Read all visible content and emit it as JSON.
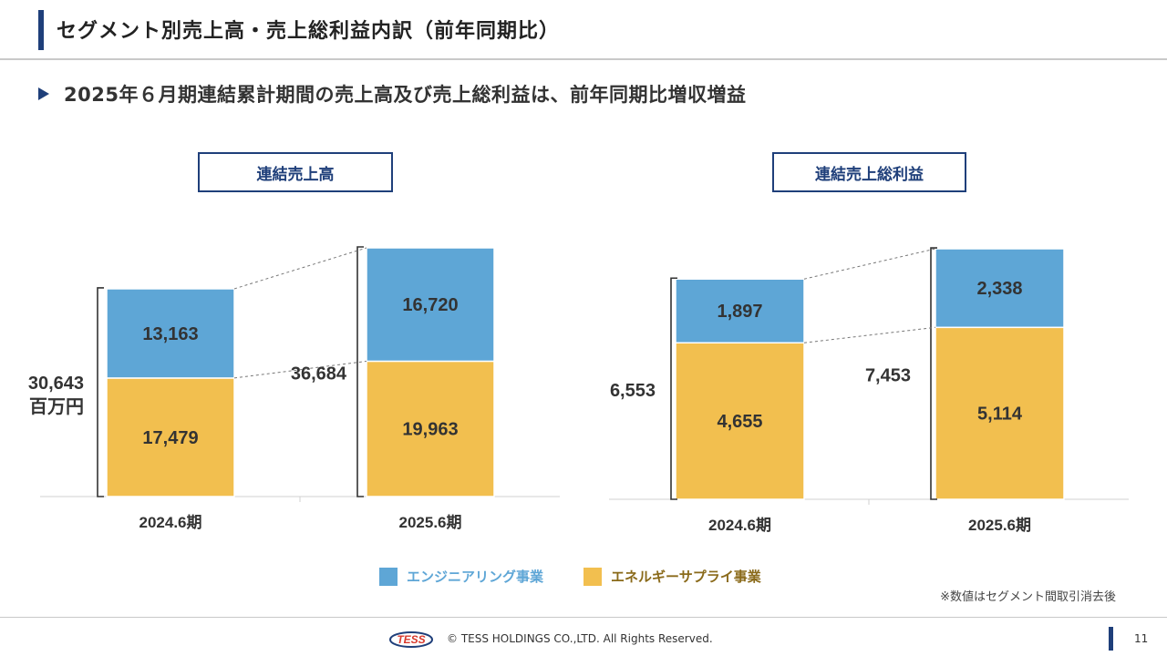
{
  "header": {
    "title": "セグメント別売上高・売上総利益内訳（前年同期比）",
    "subtitle": "2025年６月期連結累計期間の売上高及び売上総利益は、前年同期比増収増益"
  },
  "colors": {
    "engineering": "#5ea6d6",
    "energy": "#f2bf4f",
    "brand": "#1f3f7a"
  },
  "legend": [
    {
      "label": "エンジニアリング事業",
      "color": "#5ea6d6",
      "text_color": "#5ea6d6"
    },
    {
      "label": "エネルギーサプライ事業",
      "color": "#f2bf4f",
      "text_color": "#8a6a1a"
    }
  ],
  "chart_data": [
    {
      "type": "bar",
      "stacked": true,
      "title": "連結売上高",
      "categories": [
        "2024.6期",
        "2025.6期"
      ],
      "series": [
        {
          "name": "エネルギーサプライ事業",
          "values": [
            17479,
            19963
          ],
          "labels": [
            "17,479",
            "19,963"
          ]
        },
        {
          "name": "エンジニアリング事業",
          "values": [
            13163,
            16720
          ],
          "labels": [
            "13,163",
            "16,720"
          ]
        }
      ],
      "totals": [
        "30,643",
        "36,684"
      ],
      "unit": "百万円",
      "ylim": [
        0,
        36684
      ]
    },
    {
      "type": "bar",
      "stacked": true,
      "title": "連結売上総利益",
      "categories": [
        "2024.6期",
        "2025.6期"
      ],
      "series": [
        {
          "name": "エネルギーサプライ事業",
          "values": [
            4655,
            5114
          ],
          "labels": [
            "4,655",
            "5,114"
          ]
        },
        {
          "name": "エンジニアリング事業",
          "values": [
            1897,
            2338
          ],
          "labels": [
            "1,897",
            "2,338"
          ]
        }
      ],
      "totals": [
        "6,553",
        "7,453"
      ],
      "unit": "",
      "ylim": [
        0,
        7453
      ]
    }
  ],
  "note": "※数値はセグメント間取引消去後",
  "footer": {
    "logo_text": "TESS",
    "copyright": "© TESS HOLDINGS CO.,LTD. All Rights Reserved.",
    "page": "11"
  }
}
